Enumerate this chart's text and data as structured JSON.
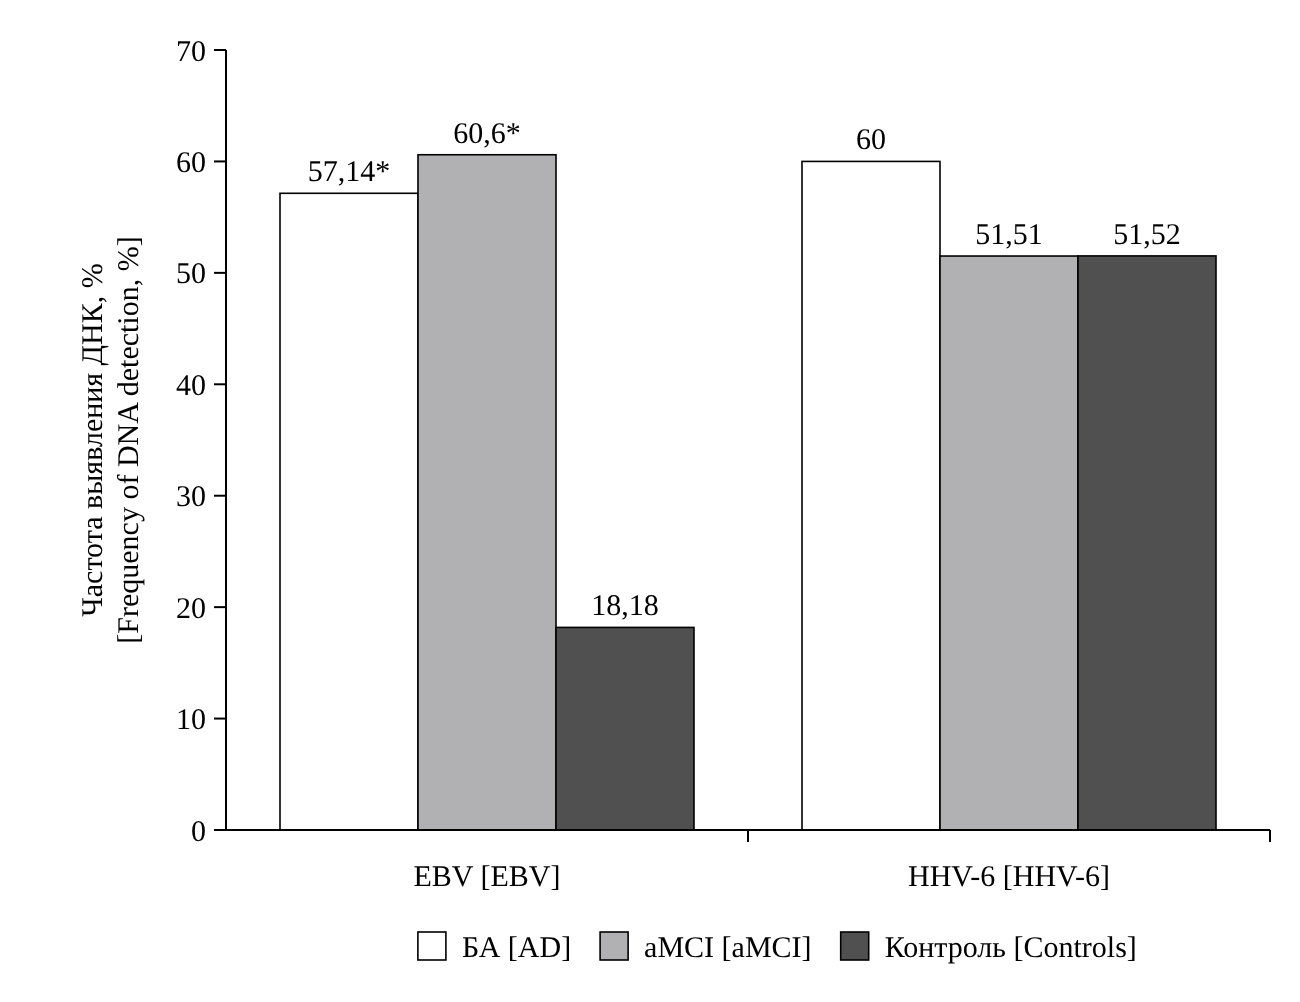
{
  "chart_data": {
    "type": "bar",
    "ylabel": "Частота выявления ДНК, %\n[Frequency of DNA detection, %]",
    "categories": [
      "EBV [EBV]",
      "HHV-6 [HHV-6]"
    ],
    "series": [
      {
        "name": "БА [AD]",
        "color": "#ffffff",
        "values": [
          57.14,
          60
        ],
        "value_labels": [
          "57,14*",
          "60"
        ]
      },
      {
        "name": "aMCI [aMCI]",
        "color": "#b1b1b3",
        "values": [
          60.6,
          51.51
        ],
        "value_labels": [
          "60,6*",
          "51,51"
        ]
      },
      {
        "name": "Контроль [Controls]",
        "color": "#505050",
        "values": [
          18.18,
          51.52
        ],
        "value_labels": [
          "18,18",
          "51,52"
        ]
      }
    ],
    "ylim": [
      0,
      70
    ],
    "yticks": [
      0,
      10,
      20,
      30,
      40,
      50,
      60,
      70
    ],
    "grid": false,
    "legend": "bottom"
  }
}
